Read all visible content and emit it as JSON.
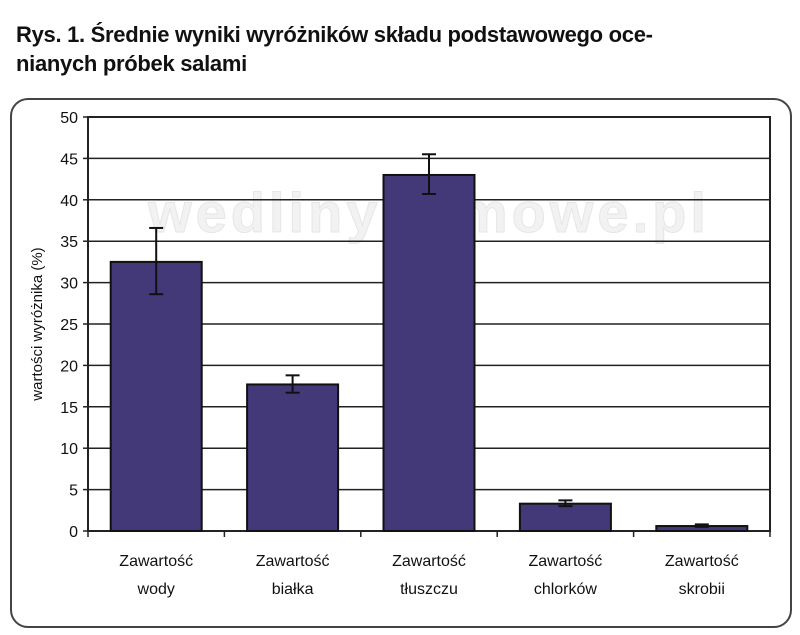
{
  "title_line1": "Rys. 1. Średnie wyniki wyróżników składu podstawowego oce-",
  "title_line2": "nianych próbek salami",
  "watermark": "wedlinydomowe.pl",
  "chart_data": {
    "type": "bar",
    "title": "Rys. 1. Średnie wyniki wyróżników składu podstawowego ocenianych próbek salami",
    "ylabel": "wartości wyróżnika (%)",
    "xlabel": "",
    "ylim": [
      0,
      50
    ],
    "yticks": [
      0,
      5,
      10,
      15,
      20,
      25,
      30,
      35,
      40,
      45,
      50
    ],
    "grid": true,
    "categories": [
      [
        "Zawartość",
        "wody"
      ],
      [
        "Zawartość",
        "białka"
      ],
      [
        "Zawartość",
        "tłuszczu"
      ],
      [
        "Zawartość",
        "chlorków"
      ],
      [
        "Zawartość",
        "skrobii"
      ]
    ],
    "values": [
      32.5,
      17.7,
      43.0,
      3.3,
      0.6
    ],
    "error_low": [
      28.6,
      16.7,
      40.7,
      3.0,
      0.5
    ],
    "error_high": [
      36.6,
      18.8,
      45.5,
      3.7,
      0.8
    ],
    "bar_color": "#433878"
  }
}
